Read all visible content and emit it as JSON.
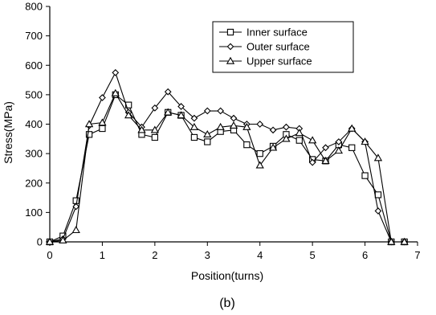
{
  "chart_data": {
    "type": "line",
    "xlabel": "Position(turns)",
    "ylabel": "Stress(MPa)",
    "caption": "(b)",
    "xlim": [
      0,
      7
    ],
    "ylim": [
      0,
      800
    ],
    "xticks": [
      0,
      1,
      2,
      3,
      4,
      5,
      6,
      7
    ],
    "yticks": [
      0,
      100,
      200,
      300,
      400,
      500,
      600,
      700,
      800
    ],
    "grid": false,
    "legend_position": "top-right",
    "series": [
      {
        "name": "Inner surface",
        "marker": "square",
        "x": [
          0,
          0.25,
          0.5,
          0.75,
          1.0,
          1.25,
          1.5,
          1.75,
          2.0,
          2.25,
          2.5,
          2.75,
          3.0,
          3.25,
          3.5,
          3.75,
          4.0,
          4.25,
          4.5,
          4.75,
          5.0,
          5.25,
          5.5,
          5.75,
          6.0,
          6.25,
          6.5,
          6.75
        ],
        "y": [
          0,
          20,
          140,
          365,
          385,
          500,
          465,
          365,
          355,
          440,
          430,
          355,
          340,
          375,
          380,
          330,
          300,
          325,
          365,
          345,
          280,
          275,
          330,
          320,
          225,
          160,
          0,
          0
        ]
      },
      {
        "name": "Outer surface",
        "marker": "diamond",
        "x": [
          0,
          0.25,
          0.5,
          0.75,
          1.0,
          1.25,
          1.5,
          1.75,
          2.0,
          2.25,
          2.5,
          2.75,
          3.0,
          3.25,
          3.5,
          3.75,
          4.0,
          4.25,
          4.5,
          4.75,
          5.0,
          5.25,
          5.5,
          5.75,
          6.0,
          6.25,
          6.5,
          6.75
        ],
        "y": [
          0,
          10,
          120,
          395,
          490,
          575,
          440,
          390,
          455,
          510,
          460,
          420,
          445,
          445,
          420,
          400,
          400,
          380,
          390,
          385,
          270,
          320,
          340,
          385,
          340,
          105,
          0,
          0
        ]
      },
      {
        "name": "Upper surface",
        "marker": "triangle",
        "x": [
          0,
          0.25,
          0.5,
          0.75,
          1.0,
          1.25,
          1.5,
          1.75,
          2.0,
          2.25,
          2.5,
          2.75,
          3.0,
          3.25,
          3.5,
          3.75,
          4.0,
          4.25,
          4.5,
          4.75,
          5.0,
          5.25,
          5.5,
          5.75,
          6.0,
          6.25,
          6.5,
          6.75
        ],
        "y": [
          0,
          5,
          40,
          400,
          405,
          505,
          430,
          380,
          380,
          440,
          430,
          390,
          365,
          390,
          395,
          390,
          260,
          320,
          350,
          370,
          345,
          275,
          310,
          385,
          340,
          285,
          0,
          0
        ]
      }
    ]
  }
}
